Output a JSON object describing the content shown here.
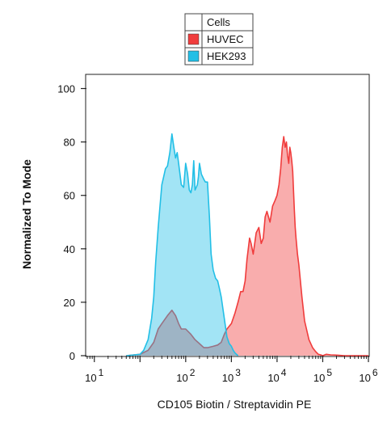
{
  "chart_data": {
    "type": "area",
    "xlabel": "CD105 Biotin / Streptavidin PE",
    "ylabel": "Normalized To Mode",
    "xscale": "log",
    "xlim": [
      0.7,
      1000000
    ],
    "ylim": [
      0,
      105
    ],
    "grid": false,
    "legend": {
      "position": "top",
      "title": "Cells",
      "entries": [
        {
          "name": "HUVEC",
          "color": "#f03c3c"
        },
        {
          "name": "HEK293",
          "color": "#22bfe6"
        }
      ]
    },
    "x_ticks": [
      {
        "value": 1,
        "base": "10",
        "exp": "1"
      },
      {
        "value": 100,
        "base": "10",
        "exp": "2"
      },
      {
        "value": 1000,
        "base": "10",
        "exp": "3"
      },
      {
        "value": 10000,
        "base": "10",
        "exp": "4"
      },
      {
        "value": 100000,
        "base": "10",
        "exp": "5"
      },
      {
        "value": 1000000,
        "base": "10",
        "exp": "6"
      }
    ],
    "y_ticks": [
      0,
      20,
      40,
      60,
      80,
      100
    ],
    "series": [
      {
        "name": "HUVEC",
        "color": "#f03c3c",
        "x": [
          5,
          10,
          15,
          20,
          25,
          30,
          40,
          50,
          60,
          70,
          80,
          100,
          130,
          160,
          200,
          250,
          300,
          400,
          500,
          600,
          700,
          800,
          1000,
          1200,
          1400,
          1600,
          1800,
          2000,
          2200,
          2500,
          2700,
          3000,
          3500,
          4000,
          4500,
          5000,
          5500,
          6000,
          6500,
          7000,
          8000,
          9000,
          10000,
          11000,
          12000,
          13000,
          14000,
          15000,
          16000,
          17000,
          18000,
          19000,
          20000,
          21000,
          22000,
          23000,
          24000,
          25000,
          26000,
          28000,
          30000,
          35000,
          40000,
          50000,
          60000,
          70000,
          80000,
          90000,
          100000,
          120000,
          150000,
          200000,
          300000,
          500000,
          1000000
        ],
        "values": [
          0,
          0.5,
          2,
          5,
          10,
          12,
          15,
          17,
          15,
          12,
          10,
          10,
          8,
          6,
          4.5,
          3,
          3,
          3.5,
          4,
          5,
          8,
          10,
          12,
          16,
          20,
          24,
          24,
          28,
          36,
          44,
          42,
          38,
          46,
          48,
          42,
          44,
          52,
          54,
          52,
          50,
          56,
          58,
          60,
          64,
          70,
          78,
          82,
          78,
          80,
          75,
          72,
          78,
          76,
          73,
          69,
          61,
          54,
          48,
          44,
          38,
          34,
          22,
          13,
          6,
          3,
          1.5,
          0.5,
          0.3,
          0,
          0.5,
          0.3,
          0.2,
          0,
          0,
          0
        ]
      },
      {
        "name": "HEK293",
        "color": "#22bfe6",
        "x": [
          5,
          10,
          12,
          15,
          18,
          20,
          22,
          25,
          28,
          30,
          33,
          36,
          40,
          45,
          50,
          55,
          60,
          65,
          70,
          80,
          90,
          100,
          110,
          120,
          130,
          140,
          150,
          160,
          170,
          180,
          190,
          200,
          220,
          250,
          270,
          300,
          330,
          360,
          400,
          450,
          500,
          550,
          600,
          700,
          800,
          900,
          1000,
          1100,
          1200,
          1400
        ],
        "values": [
          0,
          0.5,
          2,
          6,
          14,
          22,
          35,
          48,
          58,
          64,
          67,
          70,
          71,
          76,
          83,
          78,
          74,
          76,
          72,
          64,
          63,
          72,
          68,
          62,
          61,
          64,
          73,
          62,
          63,
          64,
          67,
          72,
          68,
          66,
          65,
          65,
          52,
          38,
          32,
          29,
          28,
          25,
          22,
          14,
          7,
          4.5,
          3.5,
          2,
          1,
          0
        ]
      }
    ]
  }
}
